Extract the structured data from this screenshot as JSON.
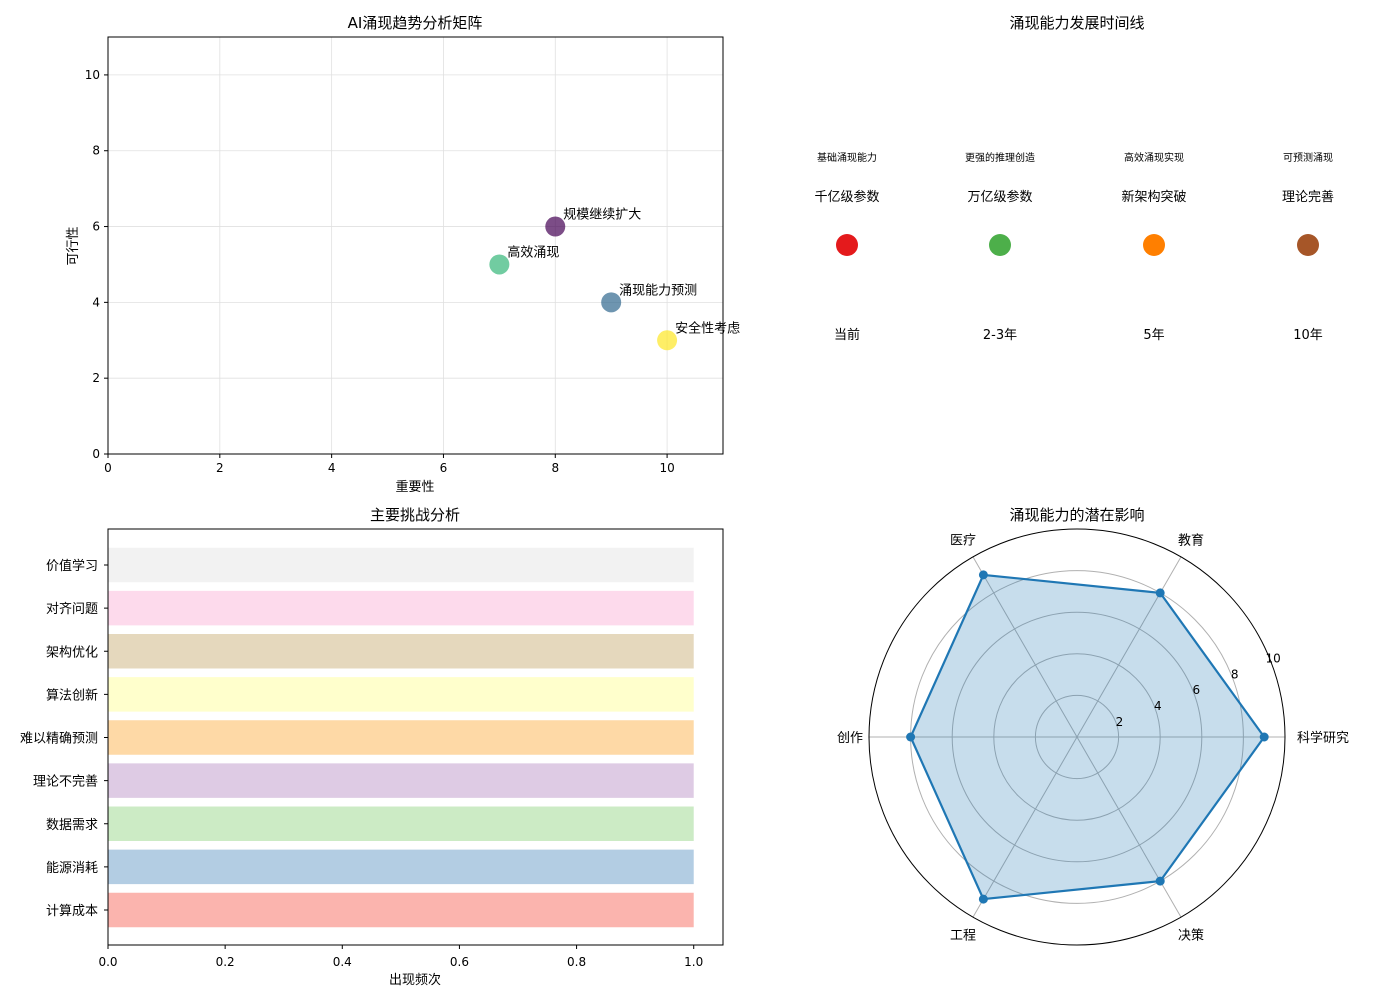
{
  "chart_data": [
    {
      "type": "scatter",
      "title": "AI涌现趋势分析矩阵",
      "xlabel": "重要性",
      "ylabel": "可行性",
      "xlim": [
        0,
        11
      ],
      "ylim": [
        0,
        11
      ],
      "xticks": [
        "0",
        "2",
        "4",
        "6",
        "8",
        "10"
      ],
      "yticks": [
        "0",
        "2",
        "4",
        "6",
        "8",
        "10"
      ],
      "grid": true,
      "points": [
        {
          "label": "规模继续扩大",
          "x": 8,
          "y": 6,
          "color": "#440154"
        },
        {
          "label": "涌现能力预测",
          "x": 9,
          "y": 4,
          "color": "#31688e"
        },
        {
          "label": "高效涌现",
          "x": 7,
          "y": 5,
          "color": "#35b779"
        },
        {
          "label": "安全性考虑",
          "x": 10,
          "y": 3,
          "color": "#fde725"
        }
      ]
    },
    {
      "type": "timeline",
      "title": "涌现能力发展时间线",
      "events": [
        {
          "time": "当前",
          "milestone": "千亿级参数",
          "capability": "基础涌现能力",
          "color": "#e41a1c"
        },
        {
          "time": "2-3年",
          "milestone": "万亿级参数",
          "capability": "更强的推理创造",
          "color": "#4daf4a"
        },
        {
          "time": "5年",
          "milestone": "新架构突破",
          "capability": "高效涌现实现",
          "color": "#ff7f00"
        },
        {
          "time": "10年",
          "milestone": "理论完善",
          "capability": "可预测涌现",
          "color": "#a65628"
        }
      ]
    },
    {
      "type": "bar",
      "orientation": "horizontal",
      "title": "主要挑战分析",
      "xlabel": "出现频次",
      "xlim": [
        0,
        1.05
      ],
      "xticks": [
        "0.0",
        "0.2",
        "0.4",
        "0.6",
        "0.8",
        "1.0"
      ],
      "categories": [
        "计算成本",
        "能源消耗",
        "数据需求",
        "理论不完善",
        "难以精确预测",
        "算法创新",
        "架构优化",
        "对齐问题",
        "价值学习"
      ],
      "values": [
        1,
        1,
        1,
        1,
        1,
        1,
        1,
        1,
        1
      ],
      "colors": [
        "#fbb4ae",
        "#b3cde3",
        "#ccebc5",
        "#decbe4",
        "#fed9a6",
        "#ffffcc",
        "#e5d8bd",
        "#fddaec",
        "#f2f2f2"
      ]
    },
    {
      "type": "radar",
      "title": "涌现能力的潜在影响",
      "categories": [
        "科学研究",
        "教育",
        "医疗",
        "创作",
        "工程",
        "决策"
      ],
      "values": [
        9,
        8,
        9,
        8,
        9,
        8
      ],
      "rlim": [
        0,
        10
      ],
      "rticks": [
        "2",
        "4",
        "6",
        "8",
        "10"
      ],
      "color": "#1f77b4"
    }
  ]
}
